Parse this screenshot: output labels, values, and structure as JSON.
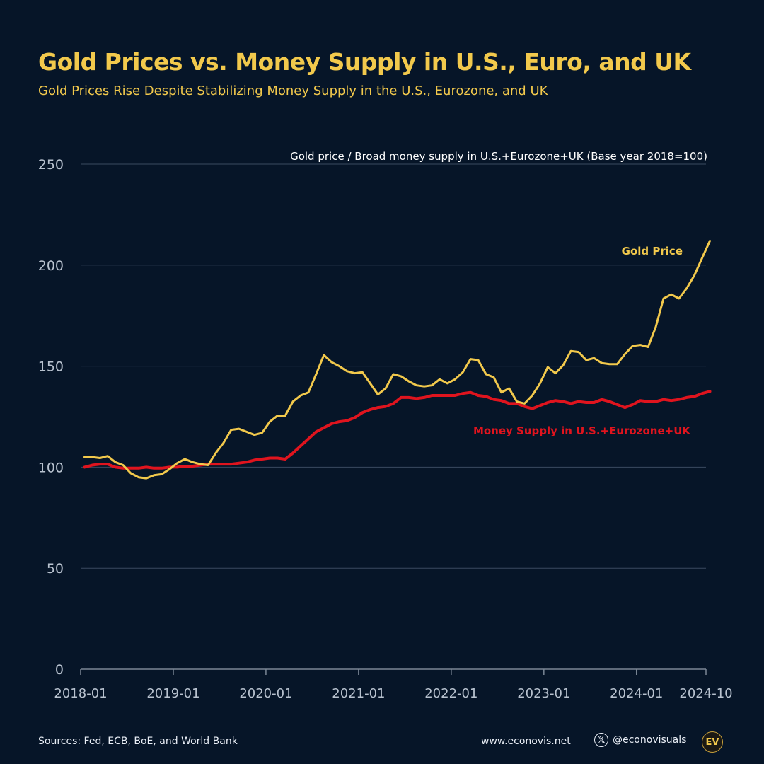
{
  "header": {
    "title": "Gold Prices vs. Money Supply in U.S., Euro, and UK",
    "subtitle": "Gold Prices Rise Despite Stabilizing Money Supply in the U.S., Eurozone, and UK"
  },
  "footer": {
    "sources": "Sources: Fed, ECB, BoE, and World Bank",
    "website": "www.econovis.net",
    "social_handle": "@econovisuals",
    "social_icon": "x-logo-icon",
    "logo_text": "EV"
  },
  "colors": {
    "background": "#061528",
    "gold": "#f2c94c",
    "money": "#e0141e",
    "grid": "#3a4a60",
    "text": "#e9eef6",
    "axis_text": "#b8c2cf"
  },
  "chart_data": {
    "type": "line",
    "title": "Gold Prices vs. Money Supply in U.S., Euro, and UK",
    "subtitle": "Gold Prices Rise Despite Stabilizing Money Supply in the U.S., Eurozone, and UK",
    "annotation": "Gold price / Broad money supply in U.S.+Eurozone+UK (Base year 2018=100)",
    "xlabel": "",
    "ylabel": "",
    "ylim": [
      0,
      250
    ],
    "yticks": [
      0,
      50,
      100,
      150,
      200,
      250
    ],
    "x_start": "2018-01",
    "x_end": "2024-10",
    "x_tick_labels": [
      "2018-01",
      "2019-01",
      "2020-01",
      "2021-01",
      "2022-01",
      "2023-01",
      "2024-01",
      "2024-10"
    ],
    "grid": true,
    "series": [
      {
        "name": "Gold Price",
        "color": "#f2c94c",
        "label_position": "upper-right",
        "values": [
          105,
          105,
          104.5,
          105.5,
          102.5,
          101,
          97,
          95,
          94.5,
          96,
          96.5,
          99,
          102,
          104,
          102.5,
          101.5,
          101,
          107,
          112,
          118.5,
          119,
          117.5,
          116,
          117,
          122.5,
          125.5,
          125.5,
          132.5,
          135.5,
          137,
          146,
          155.5,
          152,
          150,
          147.5,
          146.5,
          147,
          141.5,
          136,
          139,
          146,
          145,
          142.5,
          140.5,
          140,
          140.5,
          143.5,
          141.5,
          143.5,
          147,
          153.5,
          153,
          146,
          144.5,
          137,
          139,
          132.5,
          131.5,
          135.5,
          141.5,
          149.5,
          146.5,
          150.5,
          157.5,
          157,
          153,
          154,
          151.5,
          151,
          151,
          156,
          160,
          160.5,
          159.5,
          169.5,
          183.5,
          185.5,
          183.5,
          188.5,
          195,
          203.5,
          212
        ]
      },
      {
        "name": "Money Supply in U.S.+Eurozone+UK",
        "color": "#e0141e",
        "label_position": "right",
        "values": [
          100,
          101,
          101.5,
          101.5,
          100,
          99.5,
          99.5,
          99.5,
          100,
          99.5,
          99.5,
          100,
          100,
          100.5,
          100.5,
          101,
          101.5,
          101.5,
          101.5,
          101.5,
          102,
          102.5,
          103.5,
          104,
          104.5,
          104.5,
          104,
          107,
          110.5,
          114,
          117.5,
          119.5,
          121.5,
          122.5,
          123,
          124.5,
          127,
          128.5,
          129.5,
          130,
          131.5,
          134.5,
          134.5,
          134,
          134.5,
          135.5,
          135.5,
          135.5,
          135.5,
          136.5,
          137,
          135.5,
          135,
          133.5,
          133,
          131.5,
          131.5,
          130,
          129,
          130.5,
          132,
          133,
          132.5,
          131.5,
          132.5,
          132,
          132,
          133.5,
          132.5,
          131,
          129.5,
          131,
          133,
          132.5,
          132.5,
          133.5,
          133,
          133.5,
          134.5,
          135,
          136.5,
          137.5
        ]
      }
    ]
  }
}
